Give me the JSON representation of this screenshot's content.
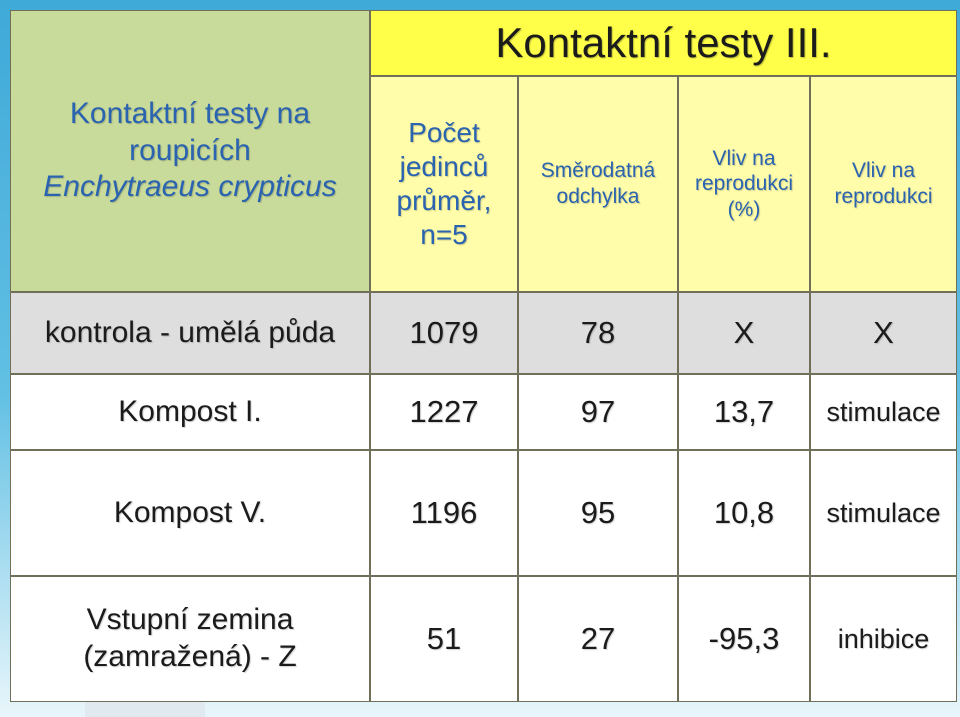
{
  "slide": {
    "title": "Kontaktní testy III."
  },
  "corner": {
    "line1": "Kontaktní testy na",
    "line2": "roupicích",
    "line3": "Enchytraeus crypticus"
  },
  "headers": {
    "count": {
      "line1": "Počet",
      "line2": "jedinců",
      "line3": "průměr,",
      "line4": "n=5"
    },
    "sd": {
      "line1": "Směrodatná",
      "line2": "odchylka"
    },
    "effect_pct": {
      "line1": "Vliv na",
      "line2": "reprodukci",
      "line3": "(%)"
    },
    "effect": {
      "line1": "Vliv na",
      "line2": "reprodukci"
    }
  },
  "rows": [
    {
      "label": "kontrola - umělá půda",
      "count": "1079",
      "sd": "78",
      "effect_pct": "X",
      "effect": "X"
    },
    {
      "label": "Kompost I.",
      "count": "1227",
      "sd": "97",
      "effect_pct": "13,7",
      "effect": "stimulace"
    },
    {
      "label": "Kompost V.",
      "count": "1196",
      "sd": "95",
      "effect_pct": "10,8",
      "effect": "stimulace"
    },
    {
      "label_line1": "Vstupní zemina",
      "label_line2": "(zamražená) - Z",
      "count": "51",
      "sd": "27",
      "effect_pct": "-95,3",
      "effect": "inhibice"
    }
  ]
}
